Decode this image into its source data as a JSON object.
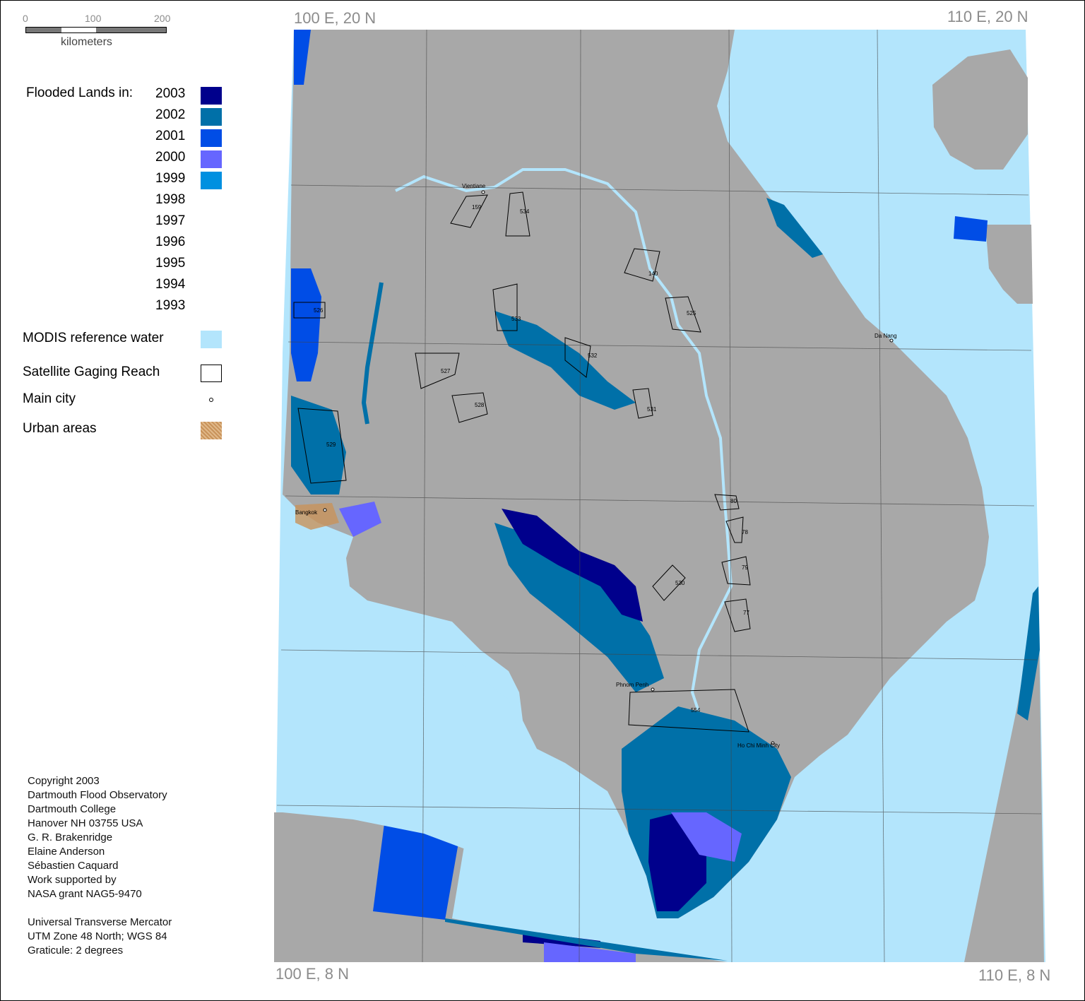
{
  "corners": {
    "top_left": "100 E, 20 N",
    "top_right": "110 E, 20 N",
    "bottom_left": "100 E, 8 N",
    "bottom_right": "110 E, 8 N"
  },
  "scale": {
    "ticks": [
      "0",
      "100",
      "200"
    ],
    "unit": "kilometers"
  },
  "legend": {
    "title": "Flooded Lands in:",
    "years": [
      {
        "year": "2003",
        "color": "#00008c"
      },
      {
        "year": "2002",
        "color": "#0070a8"
      },
      {
        "year": "2001",
        "color": "#004de6"
      },
      {
        "year": "2000",
        "color": "#6666ff"
      },
      {
        "year": "1999",
        "color": "#0090e0"
      },
      {
        "year": "1998",
        "color": ""
      },
      {
        "year": "1997",
        "color": ""
      },
      {
        "year": "1996",
        "color": ""
      },
      {
        "year": "1995",
        "color": ""
      },
      {
        "year": "1994",
        "color": ""
      },
      {
        "year": "1993",
        "color": ""
      }
    ],
    "reference_water": {
      "label": "MODIS reference water",
      "color": "#b3e5fc"
    },
    "gaging_reach": {
      "label": "Satellite Gaging Reach"
    },
    "main_city": {
      "label": "Main city"
    },
    "urban_areas": {
      "label": "Urban areas",
      "color": "#c8925a"
    }
  },
  "credits": [
    "Copyright 2003",
    "Dartmouth Flood Observatory",
    "Dartmouth College",
    "Hanover NH 03755 USA",
    "G. R. Brakenridge",
    "Elaine Anderson",
    "Sébastien Caquard",
    "Work supported by",
    "NASA grant NAG5-9470"
  ],
  "projection": [
    "Universal Transverse Mercator",
    "UTM Zone 48 North; WGS 84",
    "Graticule:  2 degrees"
  ],
  "map": {
    "land_color": "#a8a8a8",
    "water_color": "#b3e5fc",
    "cities": [
      "Vientiane",
      "Bangkok",
      "Da Nang",
      "Phnom Penh",
      "Ho Chi Minh City"
    ],
    "reaches": [
      "159",
      "534",
      "140",
      "525",
      "526",
      "527",
      "528",
      "529",
      "530",
      "531",
      "532",
      "533",
      "77",
      "78",
      "79",
      "80",
      "554"
    ]
  }
}
